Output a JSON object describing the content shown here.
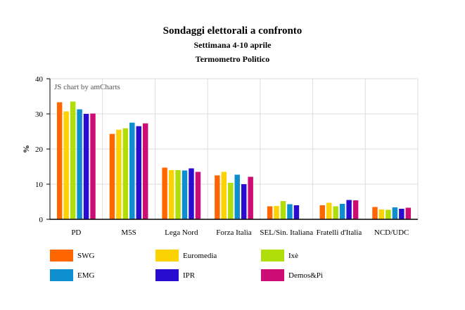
{
  "title": "Sondaggi elettorali a confronto",
  "subtitle": "Settimana 4-10 aprile",
  "source_line": "Termometro Politico",
  "credit": "JS chart by amCharts",
  "colors": {
    "SWG": "#FF6600",
    "Euromedia": "#FCD202",
    "Ixè": "#B0DE09",
    "EMG": "#0D8ECF",
    "IPR": "#2A0CD0",
    "Demos&Pi": "#CD0D74"
  },
  "chart_data": {
    "type": "bar",
    "ylabel": "%",
    "xlabel": "",
    "ylim": [
      0,
      40
    ],
    "yticks": [
      0,
      10,
      20,
      30,
      40
    ],
    "grid": true,
    "legend_position": "bottom",
    "categories": [
      "PD",
      "M5S",
      "Lega Nord",
      "Forza Italia",
      "SEL/Sin. Italiana",
      "Fratelli d'Italia",
      "NCD/UDC"
    ],
    "series": [
      {
        "name": "SWG",
        "values": [
          33.3,
          24.3,
          14.7,
          12.5,
          3.7,
          4.0,
          3.5
        ]
      },
      {
        "name": "Euromedia",
        "values": [
          30.7,
          25.5,
          14.0,
          13.5,
          3.8,
          4.7,
          2.8
        ]
      },
      {
        "name": "Ixè",
        "values": [
          33.5,
          25.9,
          14.0,
          10.4,
          5.2,
          3.7,
          2.7
        ]
      },
      {
        "name": "EMG",
        "values": [
          31.3,
          27.5,
          13.9,
          12.7,
          4.3,
          4.4,
          3.4
        ]
      },
      {
        "name": "IPR",
        "values": [
          30.0,
          26.5,
          14.5,
          10.0,
          4.0,
          5.5,
          3.0
        ]
      },
      {
        "name": "Demos&Pi",
        "values": [
          30.1,
          27.3,
          13.5,
          12.1,
          0,
          5.4,
          3.3
        ]
      }
    ]
  }
}
